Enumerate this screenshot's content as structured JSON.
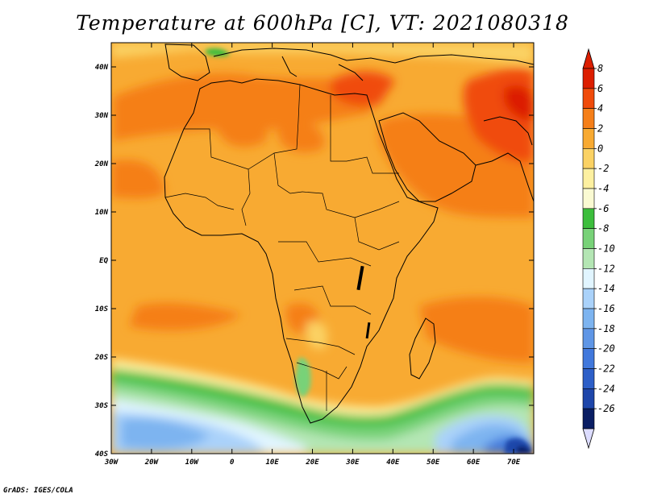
{
  "title": "Temperature at 600hPa [C], VT: 2021080318",
  "credit": "GrADS: IGES/COLA",
  "map": {
    "lon_range": [
      -30,
      75
    ],
    "lat_range": [
      -40,
      45
    ],
    "lat_ticks": [
      {
        "value": 40,
        "label": "40N"
      },
      {
        "value": 30,
        "label": "30N"
      },
      {
        "value": 20,
        "label": "20N"
      },
      {
        "value": 10,
        "label": "10N"
      },
      {
        "value": 0,
        "label": "EQ"
      },
      {
        "value": -10,
        "label": "10S"
      },
      {
        "value": -20,
        "label": "20S"
      },
      {
        "value": -30,
        "label": "30S"
      },
      {
        "value": -40,
        "label": "40S"
      }
    ],
    "lon_ticks": [
      {
        "value": -30,
        "label": "30W"
      },
      {
        "value": -20,
        "label": "20W"
      },
      {
        "value": -10,
        "label": "10W"
      },
      {
        "value": 0,
        "label": "0"
      },
      {
        "value": 10,
        "label": "10E"
      },
      {
        "value": 20,
        "label": "20E"
      },
      {
        "value": 30,
        "label": "30E"
      },
      {
        "value": 40,
        "label": "40E"
      },
      {
        "value": 50,
        "label": "50E"
      },
      {
        "value": 60,
        "label": "60E"
      },
      {
        "value": 70,
        "label": "70E"
      }
    ]
  },
  "colorbar": {
    "colors": [
      "#dc1e00",
      "#f04b0a",
      "#f57f19",
      "#f8aa32",
      "#fbd264",
      "#fdf0a0",
      "#fafad2",
      "#3cbe3c",
      "#78d278",
      "#b4e6b4",
      "#e1f5ff",
      "#aad2fa",
      "#7db4f0",
      "#5f96e6",
      "#4178dc",
      "#2d5fc8",
      "#1e46aa",
      "#0a1e64"
    ],
    "labels": [
      "8",
      "6",
      "4",
      "2",
      "0",
      "-2",
      "-4",
      "-6",
      "-8",
      "-10",
      "-12",
      "-14",
      "-16",
      "-18",
      "-20",
      "-22",
      "-24",
      "-26"
    ]
  }
}
